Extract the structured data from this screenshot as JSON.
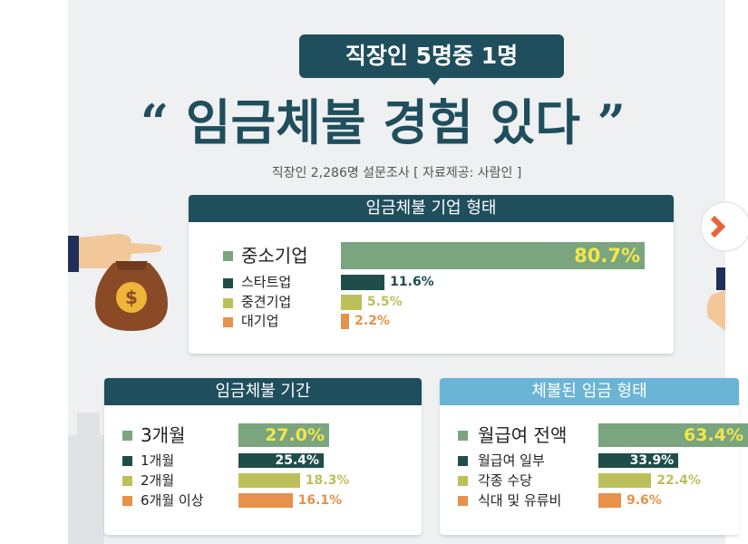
{
  "header": {
    "pill": "직장인 5명중 1명",
    "headline_open_quote": "“",
    "headline_part1": "임금체불",
    "headline_part2": "경험 있다",
    "headline_close_quote": "”",
    "subtitle": "직장인 2,286명 설문조사 [ 자료제공: 사람인 ]"
  },
  "colors": {
    "dark_teal": "#1f4e5c",
    "light_blue": "#6ab4d6",
    "green": "#7aa57e",
    "dark_green": "#1f4e4a",
    "olive": "#bcc05a",
    "orange": "#e8914a",
    "coin_bag": "#8a4a26",
    "coin": "#f0b43a"
  },
  "icons": [
    "money-bag-icon",
    "hand-icon",
    "coin-icon",
    "arrow-right-icon"
  ],
  "chart_data": [
    {
      "type": "bar",
      "title": "임금체불 기업 형태",
      "categories": [
        "중소기업",
        "스타트업",
        "중견기업",
        "대기업"
      ],
      "values": [
        80.7,
        11.6,
        5.5,
        2.2
      ],
      "labels": [
        "80.7%",
        "11.6%",
        "5.5%",
        "2.2%"
      ],
      "orientation": "horizontal",
      "colors": [
        "#7aa57e",
        "#1f4e4a",
        "#bcc05a",
        "#e8914a"
      ]
    },
    {
      "type": "bar",
      "title": "임금체불 기간",
      "categories": [
        "3개월",
        "1개월",
        "2개월",
        "6개월 이상"
      ],
      "values": [
        27.0,
        25.4,
        18.3,
        16.1
      ],
      "labels": [
        "27.0%",
        "25.4%",
        "18.3%",
        "16.1%"
      ],
      "orientation": "horizontal",
      "colors": [
        "#7aa57e",
        "#1f4e4a",
        "#bcc05a",
        "#e8914a"
      ]
    },
    {
      "type": "bar",
      "title": "체불된 임금 형태",
      "categories": [
        "월급여 전액",
        "월급여 일부",
        "각종 수당",
        "식대 및 유류비"
      ],
      "values": [
        63.4,
        33.9,
        22.4,
        9.6
      ],
      "labels": [
        "63.4%",
        "33.9%",
        "22.4%",
        "9.6%"
      ],
      "orientation": "horizontal",
      "colors": [
        "#7aa57e",
        "#1f4e4a",
        "#bcc05a",
        "#e8914a"
      ]
    }
  ]
}
